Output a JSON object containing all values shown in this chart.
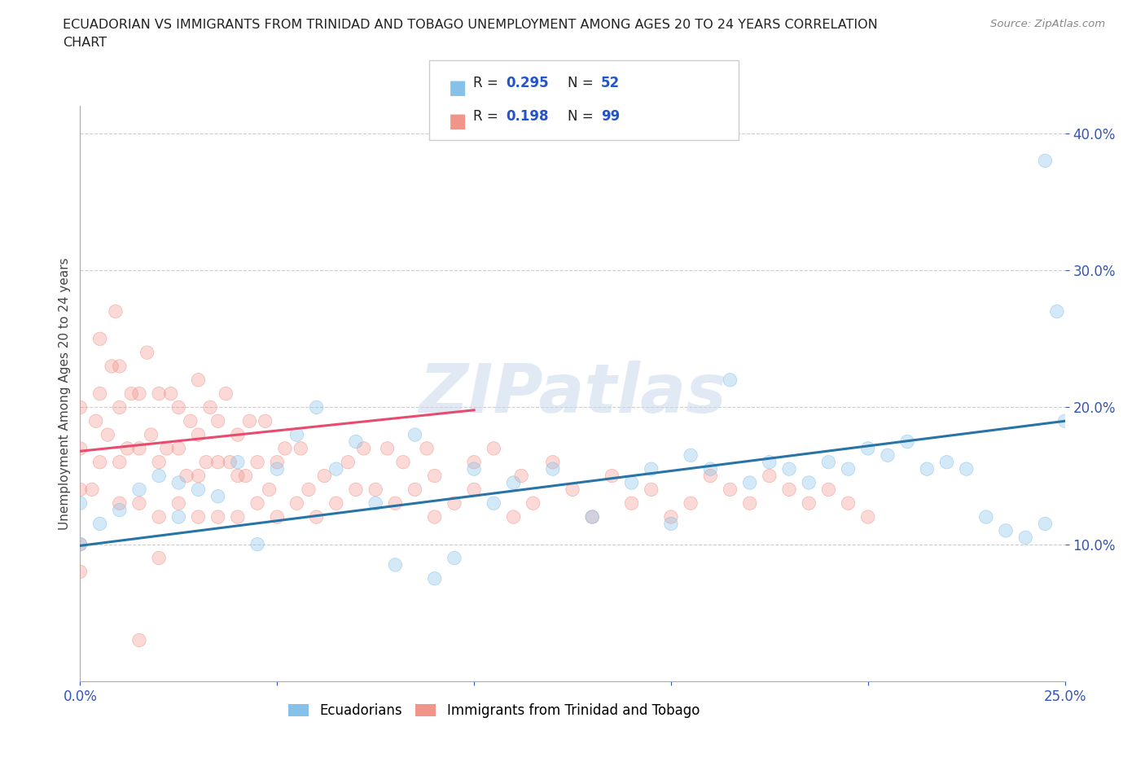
{
  "title_line1": "ECUADORIAN VS IMMIGRANTS FROM TRINIDAD AND TOBAGO UNEMPLOYMENT AMONG AGES 20 TO 24 YEARS CORRELATION",
  "title_line2": "CHART",
  "source_text": "Source: ZipAtlas.com",
  "ylabel": "Unemployment Among Ages 20 to 24 years",
  "xlim": [
    0.0,
    0.25
  ],
  "ylim": [
    0.0,
    0.42
  ],
  "x_ticks": [
    0.0,
    0.05,
    0.1,
    0.15,
    0.2,
    0.25
  ],
  "x_tick_labels": [
    "0.0%",
    "",
    "",
    "",
    "",
    "25.0%"
  ],
  "y_ticks": [
    0.1,
    0.2,
    0.3,
    0.4
  ],
  "y_tick_labels": [
    "10.0%",
    "20.0%",
    "30.0%",
    "40.0%"
  ],
  "blue_color": "#85c1e9",
  "pink_color": "#f1948a",
  "blue_line_color": "#2874a6",
  "pink_line_color": "#e74c6f",
  "watermark": "ZIPatlas",
  "legend_label_blue": "Ecuadorians",
  "legend_label_pink": "Immigrants from Trinidad and Tobago",
  "bg_color": "#ffffff",
  "grid_color": "#cccccc",
  "blue_x": [
    0.0,
    0.0,
    0.005,
    0.01,
    0.015,
    0.02,
    0.025,
    0.025,
    0.03,
    0.035,
    0.04,
    0.045,
    0.05,
    0.055,
    0.06,
    0.065,
    0.07,
    0.075,
    0.08,
    0.085,
    0.09,
    0.095,
    0.1,
    0.105,
    0.11,
    0.12,
    0.13,
    0.14,
    0.145,
    0.15,
    0.155,
    0.16,
    0.165,
    0.17,
    0.175,
    0.18,
    0.185,
    0.19,
    0.195,
    0.2,
    0.205,
    0.21,
    0.215,
    0.22,
    0.225,
    0.23,
    0.235,
    0.24,
    0.245,
    0.245,
    0.248,
    0.25
  ],
  "blue_y": [
    0.1,
    0.13,
    0.115,
    0.125,
    0.14,
    0.15,
    0.12,
    0.145,
    0.14,
    0.135,
    0.16,
    0.1,
    0.155,
    0.18,
    0.2,
    0.155,
    0.175,
    0.13,
    0.085,
    0.18,
    0.075,
    0.09,
    0.155,
    0.13,
    0.145,
    0.155,
    0.12,
    0.145,
    0.155,
    0.115,
    0.165,
    0.155,
    0.22,
    0.145,
    0.16,
    0.155,
    0.145,
    0.16,
    0.155,
    0.17,
    0.165,
    0.175,
    0.155,
    0.16,
    0.155,
    0.12,
    0.11,
    0.105,
    0.115,
    0.38,
    0.27,
    0.19
  ],
  "pink_x": [
    0.0,
    0.0,
    0.0,
    0.0,
    0.0,
    0.003,
    0.004,
    0.005,
    0.005,
    0.005,
    0.007,
    0.008,
    0.009,
    0.01,
    0.01,
    0.01,
    0.01,
    0.012,
    0.013,
    0.015,
    0.015,
    0.015,
    0.017,
    0.018,
    0.02,
    0.02,
    0.02,
    0.022,
    0.023,
    0.025,
    0.025,
    0.025,
    0.027,
    0.028,
    0.03,
    0.03,
    0.03,
    0.03,
    0.032,
    0.033,
    0.035,
    0.035,
    0.035,
    0.037,
    0.038,
    0.04,
    0.04,
    0.04,
    0.042,
    0.043,
    0.045,
    0.045,
    0.047,
    0.048,
    0.05,
    0.05,
    0.052,
    0.055,
    0.056,
    0.058,
    0.06,
    0.062,
    0.065,
    0.068,
    0.07,
    0.072,
    0.075,
    0.078,
    0.08,
    0.082,
    0.085,
    0.088,
    0.09,
    0.09,
    0.095,
    0.1,
    0.1,
    0.105,
    0.11,
    0.112,
    0.115,
    0.12,
    0.125,
    0.13,
    0.135,
    0.14,
    0.145,
    0.15,
    0.155,
    0.16,
    0.165,
    0.17,
    0.175,
    0.18,
    0.185,
    0.19,
    0.195,
    0.2,
    0.015,
    0.02
  ],
  "pink_y": [
    0.08,
    0.1,
    0.14,
    0.17,
    0.2,
    0.14,
    0.19,
    0.16,
    0.21,
    0.25,
    0.18,
    0.23,
    0.27,
    0.13,
    0.16,
    0.2,
    0.23,
    0.17,
    0.21,
    0.13,
    0.17,
    0.21,
    0.24,
    0.18,
    0.12,
    0.16,
    0.21,
    0.17,
    0.21,
    0.13,
    0.17,
    0.2,
    0.15,
    0.19,
    0.12,
    0.15,
    0.18,
    0.22,
    0.16,
    0.2,
    0.12,
    0.16,
    0.19,
    0.21,
    0.16,
    0.12,
    0.15,
    0.18,
    0.15,
    0.19,
    0.13,
    0.16,
    0.19,
    0.14,
    0.12,
    0.16,
    0.17,
    0.13,
    0.17,
    0.14,
    0.12,
    0.15,
    0.13,
    0.16,
    0.14,
    0.17,
    0.14,
    0.17,
    0.13,
    0.16,
    0.14,
    0.17,
    0.12,
    0.15,
    0.13,
    0.16,
    0.14,
    0.17,
    0.12,
    0.15,
    0.13,
    0.16,
    0.14,
    0.12,
    0.15,
    0.13,
    0.14,
    0.12,
    0.13,
    0.15,
    0.14,
    0.13,
    0.15,
    0.14,
    0.13,
    0.14,
    0.13,
    0.12,
    0.03,
    0.09
  ],
  "blue_trend_x": [
    0.0,
    0.25
  ],
  "blue_trend_y": [
    0.099,
    0.19
  ],
  "pink_trend_x": [
    0.0,
    0.1
  ],
  "pink_trend_y": [
    0.168,
    0.198
  ]
}
